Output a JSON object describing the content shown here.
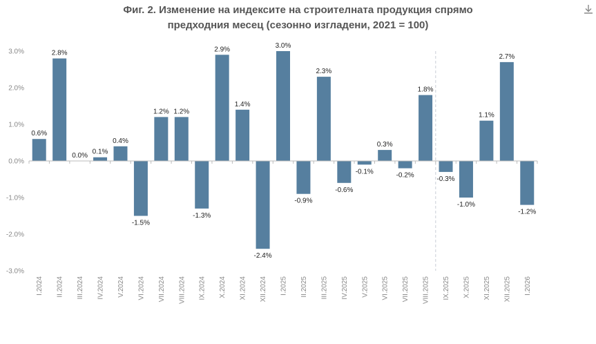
{
  "title_line1": "Фиг. 2. Изменение на индексите на строителната продукция спрямо",
  "title_line2": "предходния месец (сезонно изгладени, 2021 = 100)",
  "download_icon": "download-icon",
  "chart_data": {
    "type": "bar",
    "title": "Фиг. 2. Изменение на индексите на строителната продукция спрямо предходния месец (сезонно изгладени, 2021 = 100)",
    "categories": [
      "I.2024",
      "II.2024",
      "III.2024",
      "IV.2024",
      "V.2024",
      "VI.2024",
      "VII.2024",
      "VIII.2024",
      "IX.2024",
      "X.2024",
      "XI.2024",
      "XII.2024",
      "I.2025",
      "II.2025",
      "III.2025",
      "IV.2025",
      "V.2025",
      "VI.2025",
      "VII.2025",
      "VIII.2025",
      "IX.2025",
      "X.2025",
      "XI.2025",
      "XII.2025",
      "I.2026"
    ],
    "values": [
      0.6,
      2.8,
      0.0,
      0.1,
      0.4,
      -1.5,
      1.2,
      1.2,
      -1.3,
      2.9,
      1.4,
      -2.4,
      3.0,
      -0.9,
      2.3,
      -0.6,
      -0.1,
      0.3,
      -0.2,
      1.8,
      -0.3,
      -1.0,
      1.1,
      2.7,
      -1.2
    ],
    "labels": [
      "0.6%",
      "2.8%",
      "0.0%",
      "0.1%",
      "0.4%",
      "-1.5%",
      "1.2%",
      "1.2%",
      "-1.3%",
      "2.9%",
      "1.4%",
      "-2.4%",
      "3.0%",
      "-0.9%",
      "2.3%",
      "-0.6%",
      "-0.1%",
      "0.3%",
      "-0.2%",
      "1.8%",
      "-0.3%",
      "-1.0%",
      "1.1%",
      "2.7%",
      "-1.2%"
    ],
    "yticks": [
      3,
      2,
      1,
      0,
      -1,
      -2,
      -3
    ],
    "ytick_labels": [
      "3.0%",
      "2.0%",
      "1.0%",
      "0.0%",
      "-1.0%",
      "-2.0%",
      "-3.0%"
    ],
    "ylim": [
      -3,
      3
    ],
    "xlabel": "",
    "ylabel": "",
    "grid": false,
    "marker_after_category": "VIII.2025",
    "bar_color": "#567f9f",
    "axis_color": "#bbbbbb"
  }
}
